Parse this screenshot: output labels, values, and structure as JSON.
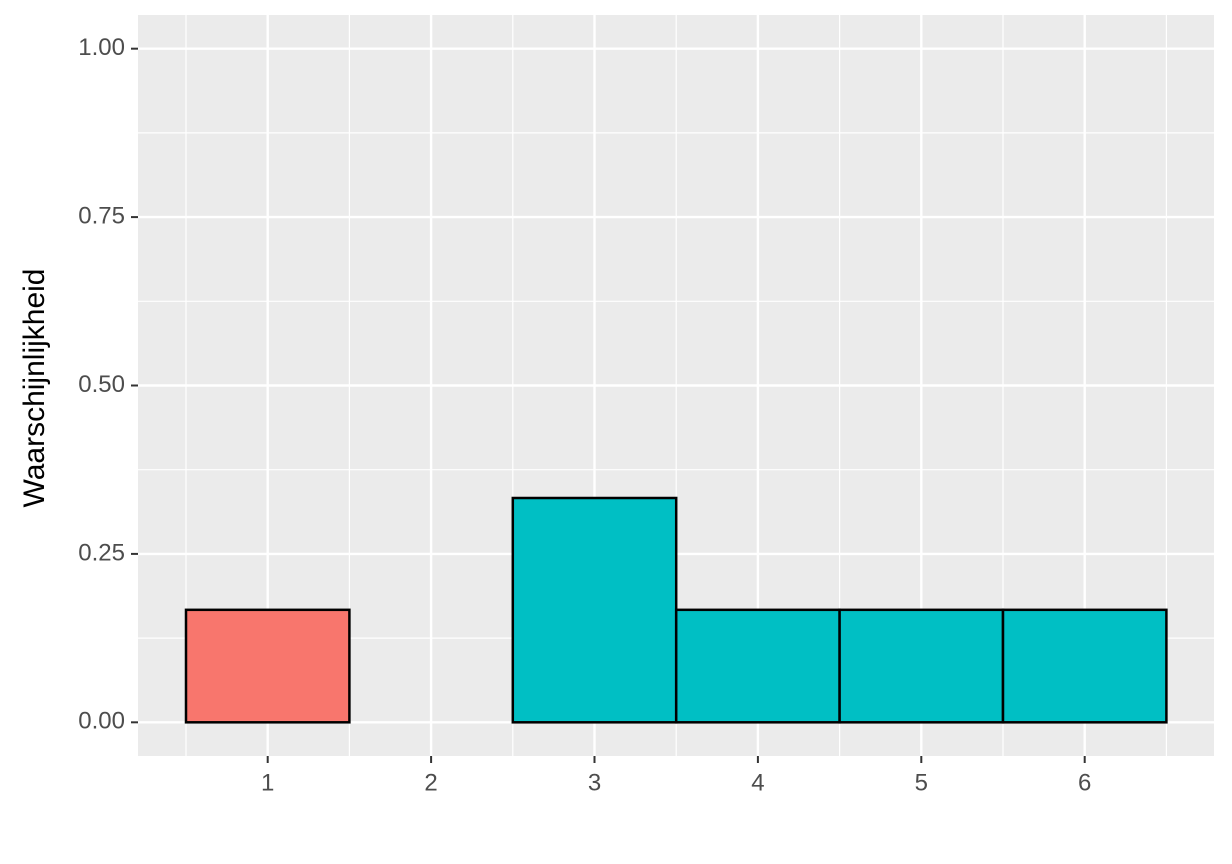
{
  "chart_data": {
    "type": "bar",
    "y_label": "Waarschijnlijkheid",
    "categories": [
      "1",
      "2",
      "3",
      "4",
      "5",
      "6"
    ],
    "values": [
      0.167,
      0,
      0.333,
      0.167,
      0.167,
      0.167
    ],
    "colors": [
      "#f8766d",
      "#00bfc4",
      "#00bfc4",
      "#00bfc4",
      "#00bfc4",
      "#00bfc4"
    ],
    "ylim": [
      -0.05,
      1.05
    ],
    "yticks": [
      {
        "value": 0,
        "label": "0.00"
      },
      {
        "value": 0.25,
        "label": "0.25"
      },
      {
        "value": 0.5,
        "label": "0.50"
      },
      {
        "value": 0.75,
        "label": "0.75"
      },
      {
        "value": 1,
        "label": "1.00"
      }
    ],
    "grid": true
  }
}
